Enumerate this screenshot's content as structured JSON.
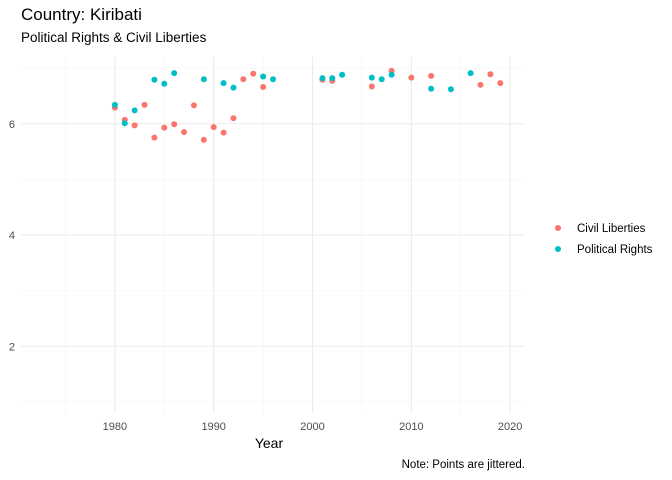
{
  "chart_data": {
    "type": "scatter",
    "title": "Country: Kiribati",
    "subtitle": "Political Rights & Civil Liberties",
    "xlabel": "Year",
    "ylabel": "",
    "caption": "Note: Points are jittered.",
    "xlim": [
      1970.5,
      2021.5
    ],
    "ylim": [
      0.8,
      7.2
    ],
    "x_ticks": [
      1980,
      1990,
      2000,
      2010,
      2020
    ],
    "y_ticks": [
      2,
      4,
      6
    ],
    "grid": true,
    "legend_position": "right",
    "series": [
      {
        "name": "Civil Liberties",
        "color": "#F8766D",
        "points": [
          [
            1980,
            6.29
          ],
          [
            1981,
            6.07
          ],
          [
            1982,
            5.97
          ],
          [
            1983,
            6.34
          ],
          [
            1984,
            5.75
          ],
          [
            1985,
            5.93
          ],
          [
            1986,
            5.99
          ],
          [
            1987,
            5.85
          ],
          [
            1988,
            6.33
          ],
          [
            1989,
            5.71
          ],
          [
            1990,
            5.94
          ],
          [
            1991,
            5.84
          ],
          [
            1992,
            6.1
          ],
          [
            1993,
            6.8
          ],
          [
            1994,
            6.9
          ],
          [
            1995,
            6.66
          ],
          [
            2001,
            6.79
          ],
          [
            2002,
            6.77
          ],
          [
            2006,
            6.67
          ],
          [
            2008,
            6.95
          ],
          [
            2010,
            6.83
          ],
          [
            2012,
            6.86
          ],
          [
            2017,
            6.7
          ],
          [
            2018,
            6.89
          ],
          [
            2019,
            6.73
          ]
        ]
      },
      {
        "name": "Political Rights",
        "color": "#00BFC4",
        "points": [
          [
            1980,
            6.34
          ],
          [
            1981,
            6.01
          ],
          [
            1982,
            6.24
          ],
          [
            1984,
            6.79
          ],
          [
            1985,
            6.72
          ],
          [
            1986,
            6.91
          ],
          [
            1989,
            6.8
          ],
          [
            1991,
            6.73
          ],
          [
            1992,
            6.65
          ],
          [
            1995,
            6.85
          ],
          [
            1996,
            6.8
          ],
          [
            2001,
            6.82
          ],
          [
            2002,
            6.82
          ],
          [
            2003,
            6.88
          ],
          [
            2006,
            6.83
          ],
          [
            2007,
            6.8
          ],
          [
            2008,
            6.88
          ],
          [
            2012,
            6.63
          ],
          [
            2014,
            6.62
          ],
          [
            2016,
            6.91
          ]
        ]
      }
    ]
  }
}
